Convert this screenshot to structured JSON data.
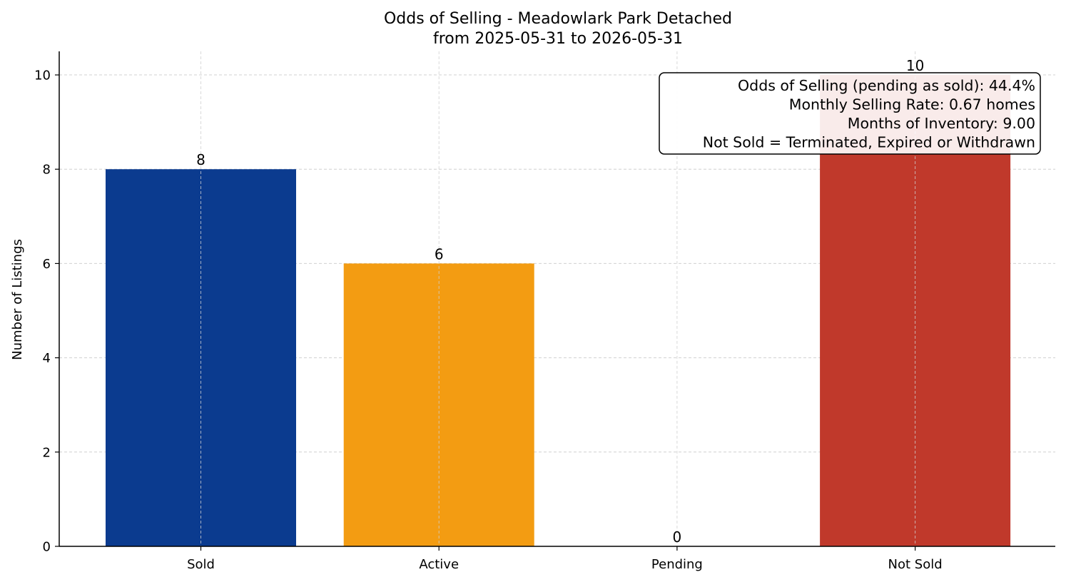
{
  "chart_data": {
    "type": "bar",
    "title": "Odds of Selling - Meadowlark Park Detached",
    "subtitle": "from 2025-05-31 to 2026-05-31",
    "xlabel": "",
    "ylabel": "Number of Listings",
    "categories": [
      "Sold",
      "Active",
      "Pending",
      "Not Sold"
    ],
    "values": [
      8,
      6,
      0,
      10
    ],
    "colors": [
      "#0b3b8f",
      "#f39c12",
      "#27ae60",
      "#c0392b"
    ],
    "ylim": [
      0,
      10.5
    ],
    "yticks": [
      0,
      2,
      4,
      6,
      8,
      10
    ],
    "grid": true,
    "annotation": {
      "placement": "top-right",
      "lines": [
        "Odds of Selling (pending as sold): 44.4%",
        "Monthly Selling Rate: 0.67 homes",
        "Months of Inventory: 9.00",
        "Not Sold = Terminated, Expired or Withdrawn"
      ]
    }
  }
}
